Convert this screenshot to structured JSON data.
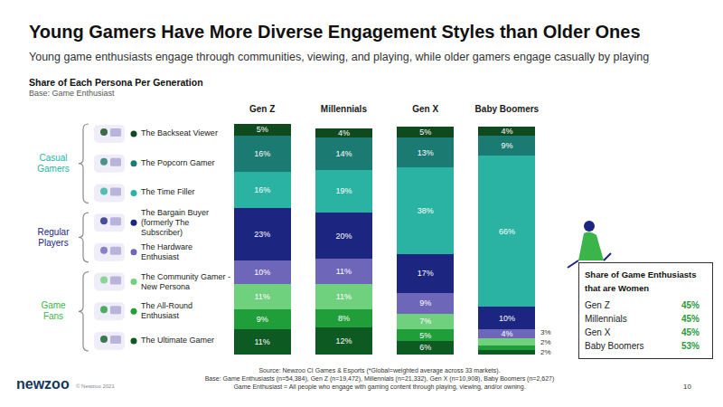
{
  "header": {
    "title": "Young Gamers Have More Diverse Engagement Styles than Older Ones",
    "subtitle": "Young game enthusiasts engage through communities, viewing, and playing, while older gamers engage casually by playing"
  },
  "chart_data": {
    "type": "bar",
    "stacked": true,
    "data_labels": true,
    "tick_labels": "x",
    "grid": false,
    "legend": "left",
    "title": "Share of Each Persona Per Generation",
    "subtitle": "Base: Game Enthusiast",
    "categories": [
      "Gen Z",
      "Millennials",
      "Gen X",
      "Baby Boomers"
    ],
    "ylim": [
      0,
      101
    ],
    "series": [
      {
        "name": "The Backseat Viewer",
        "color": "#0f4a1f",
        "values": [
          5,
          4,
          5,
          4
        ],
        "value_labels": [
          "5%",
          "4%",
          "5%",
          "4%"
        ]
      },
      {
        "name": "The Popcorn Gamer",
        "color": "#1b7a72",
        "values": [
          16,
          14,
          13,
          9
        ],
        "value_labels": [
          "16%",
          "14%",
          "13%",
          "9%"
        ]
      },
      {
        "name": "The Time Filler",
        "color": "#2ab3a3",
        "values": [
          16,
          19,
          38,
          66
        ],
        "value_labels": [
          "16%",
          "19%",
          "38%",
          "66%"
        ]
      },
      {
        "name": "The Bargain Buyer (formerly The Subscriber)",
        "color": "#1c2580",
        "values": [
          23,
          20,
          17,
          10
        ],
        "value_labels": [
          "23%",
          "20%",
          "17%",
          "10%"
        ]
      },
      {
        "name": "The Hardware Enthusiast",
        "color": "#6e66b8",
        "values": [
          10,
          11,
          9,
          4
        ],
        "value_labels": [
          "10%",
          "11%",
          "9%",
          "4%"
        ]
      },
      {
        "name": "The Community Gamer - New Persona",
        "color": "#6fd07d",
        "values": [
          11,
          11,
          7,
          3
        ],
        "value_labels": [
          "11%",
          "11%",
          "7%",
          "3%"
        ]
      },
      {
        "name": "The All-Round Enthusiast",
        "color": "#1f9e3a",
        "values": [
          9,
          8,
          5,
          2
        ],
        "value_labels": [
          "9%",
          "8%",
          "5%",
          "2%"
        ]
      },
      {
        "name": "The Ultimate Gamer",
        "color": "#0d5a22",
        "values": [
          11,
          12,
          6,
          2
        ],
        "value_labels": [
          "11%",
          "12%",
          "6%",
          "2%"
        ]
      }
    ]
  },
  "persona_groups": [
    {
      "label": "Casual Gamers",
      "members": [
        "The Backseat Viewer",
        "The Popcorn Gamer",
        "The Time Filler"
      ]
    },
    {
      "label": "Regular Players",
      "members": [
        "The Bargain Buyer (formerly The Subscriber)",
        "The Hardware Enthusiast"
      ]
    },
    {
      "label": "Game Fans",
      "members": [
        "The Community Gamer - New Persona",
        "The All-Round Enthusiast",
        "The Ultimate Gamer"
      ]
    }
  ],
  "side_panel": {
    "title": "Share of Game Enthusiasts that are Women",
    "rows": [
      [
        "Gen Z",
        "45%"
      ],
      [
        "Millennials",
        "45%"
      ],
      [
        "Gen X",
        "45%"
      ],
      [
        "Baby Boomers",
        "53%"
      ]
    ]
  },
  "footer": {
    "lines": [
      "Source: Newzoo CI Games & Esports (*Global=weighted average across 33 markets).",
      "Base: Game Enthusiasts (n=54,384), Gen Z (n=19,472), Millennials (n=21,332), Gen X (n=10,908), Baby Boomers (n=2,627)",
      "Game Enthusiast = All people who engage with gaming content through playing, viewing, and/or owning."
    ]
  },
  "brand": {
    "logo": "newzoo",
    "copyright": "© Newzoo 2021",
    "page": "10"
  }
}
